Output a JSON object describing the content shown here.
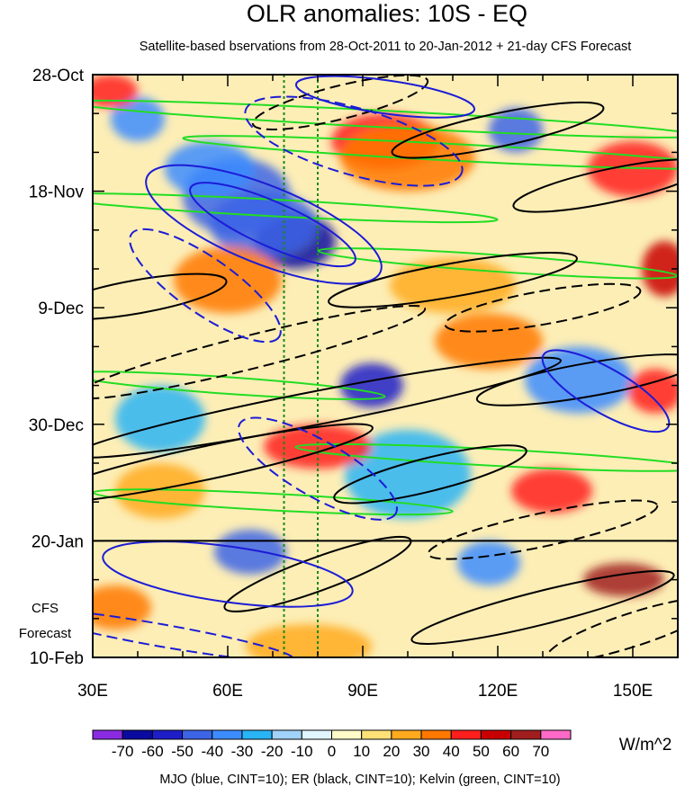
{
  "chart_data": {
    "type": "heatmap",
    "title": "OLR anomalies: 10S - EQ",
    "subtitle": "Satellite-based bservations from 28-Oct-2011 to 20-Jan-2012 + 21-day CFS Forecast",
    "x_axis": {
      "range": [
        30,
        160
      ],
      "ticks": [
        30,
        60,
        90,
        120,
        150
      ],
      "tick_labels": [
        "30E",
        "60E",
        "90E",
        "120E",
        "150E"
      ],
      "minor_every": 10
    },
    "y_axis": {
      "tick_labels": [
        "28-Oct",
        "18-Nov",
        "9-Dec",
        "30-Dec",
        "20-Jan",
        "10-Feb"
      ],
      "tick_day_offsets": [
        0,
        21,
        42,
        63,
        84,
        105
      ],
      "total_days": 105,
      "minor_every_days": 7,
      "direction": "time increases downward"
    },
    "observation_end_day": 84,
    "forecast_label": "CFS Forecast",
    "forecast_label_lines": [
      "CFS",
      "Forecast"
    ],
    "reference_longitudes": [
      72.5,
      80
    ],
    "colorbar": {
      "levels": [
        -70,
        -60,
        -50,
        -40,
        -30,
        -20,
        -10,
        0,
        10,
        20,
        30,
        40,
        50,
        60,
        70
      ],
      "labels": [
        "-70",
        "-60",
        "-50",
        "-40",
        "-30",
        "-20",
        "-10",
        "0",
        "10",
        "20",
        "30",
        "40",
        "50",
        "60",
        "70"
      ],
      "colors": [
        "#8a2be2",
        "#0a0aa0",
        "#1e1ec8",
        "#3c64e6",
        "#3c8cff",
        "#28b4f5",
        "#a0d2fa",
        "#e1f5ff",
        "#fffac8",
        "#ffe178",
        "#ffaa1e",
        "#ff7800",
        "#ff1e1e",
        "#c80000",
        "#a01e1e",
        "#ff69c8"
      ],
      "units": "W/m^2"
    },
    "overlays": [
      {
        "name": "MJO",
        "color": "#1c1cd6",
        "cint": 10
      },
      {
        "name": "ER",
        "color": "#000000",
        "cint": 10
      },
      {
        "name": "Kelvin",
        "color": "#22dd22",
        "cint": 10
      }
    ],
    "legend_text": "MJO (blue, CINT=10); ER (black, CINT=10); Kelvin (green, CINT=10)",
    "anomaly_features": [
      {
        "lon": 75,
        "day": 30,
        "value": -70,
        "rx": 9,
        "ry": 5
      },
      {
        "lon": 62,
        "day": 22,
        "value": -50,
        "rx": 12,
        "ry": 7
      },
      {
        "lon": 56,
        "day": 17,
        "value": -40,
        "rx": 10,
        "ry": 5
      },
      {
        "lon": 68,
        "day": 27,
        "value": -50,
        "rx": 12,
        "ry": 6
      },
      {
        "lon": 92,
        "day": 56,
        "value": -60,
        "rx": 7,
        "ry": 4
      },
      {
        "lon": 124,
        "day": 10,
        "value": -50,
        "rx": 6,
        "ry": 4
      },
      {
        "lon": 40,
        "day": 8,
        "value": -40,
        "rx": 6,
        "ry": 4
      },
      {
        "lon": 138,
        "day": 55,
        "value": -40,
        "rx": 12,
        "ry": 6
      },
      {
        "lon": 65,
        "day": 86,
        "value": -50,
        "rx": 8,
        "ry": 4
      },
      {
        "lon": 118,
        "day": 88,
        "value": -40,
        "rx": 7,
        "ry": 4
      },
      {
        "lon": 100,
        "day": 72,
        "value": -30,
        "rx": 14,
        "ry": 8
      },
      {
        "lon": 45,
        "day": 62,
        "value": -30,
        "rx": 10,
        "ry": 6
      },
      {
        "lon": 95,
        "day": 12,
        "value": 40,
        "rx": 12,
        "ry": 5
      },
      {
        "lon": 100,
        "day": 15,
        "value": 30,
        "rx": 15,
        "ry": 6
      },
      {
        "lon": 150,
        "day": 17,
        "value": 40,
        "rx": 10,
        "ry": 5
      },
      {
        "lon": 60,
        "day": 37,
        "value": 30,
        "rx": 12,
        "ry": 6
      },
      {
        "lon": 157,
        "day": 35,
        "value": 50,
        "rx": 5,
        "ry": 5
      },
      {
        "lon": 80,
        "day": 67,
        "value": 40,
        "rx": 12,
        "ry": 4
      },
      {
        "lon": 132,
        "day": 75,
        "value": 40,
        "rx": 9,
        "ry": 4
      },
      {
        "lon": 148,
        "day": 91,
        "value": 60,
        "rx": 9,
        "ry": 3
      },
      {
        "lon": 35,
        "day": 96,
        "value": 30,
        "rx": 8,
        "ry": 4
      },
      {
        "lon": 78,
        "day": 103,
        "value": 20,
        "rx": 14,
        "ry": 4
      },
      {
        "lon": 34,
        "day": 3,
        "value": 40,
        "rx": 6,
        "ry": 3
      },
      {
        "lon": 118,
        "day": 48,
        "value": 30,
        "rx": 12,
        "ry": 5
      },
      {
        "lon": 155,
        "day": 57,
        "value": 40,
        "rx": 6,
        "ry": 4
      },
      {
        "lon": 110,
        "day": 38,
        "value": 20,
        "rx": 14,
        "ry": 5
      },
      {
        "lon": 45,
        "day": 75,
        "value": 20,
        "rx": 10,
        "ry": 5
      }
    ],
    "mjo_contours": [
      {
        "lon": 68,
        "day": 27,
        "rx": 28,
        "ry": 7,
        "angle": 22,
        "dashed": false
      },
      {
        "lon": 70,
        "day": 27,
        "rx": 20,
        "ry": 4,
        "angle": 24,
        "dashed": false
      },
      {
        "lon": 88,
        "day": 12,
        "rx": 25,
        "ry": 6,
        "angle": 16,
        "dashed": true
      },
      {
        "lon": 55,
        "day": 38,
        "rx": 20,
        "ry": 5,
        "angle": 35,
        "dashed": true
      },
      {
        "lon": 80,
        "day": 71,
        "rx": 20,
        "ry": 5,
        "angle": 30,
        "dashed": true
      },
      {
        "lon": 144,
        "day": 57,
        "rx": 16,
        "ry": 4,
        "angle": 30,
        "dashed": false
      },
      {
        "lon": 60,
        "day": 90,
        "rx": 28,
        "ry": 5,
        "angle": 8,
        "dashed": false
      },
      {
        "lon": 45,
        "day": 101,
        "rx": 30,
        "ry": 2,
        "angle": 10,
        "dashed": true
      },
      {
        "lon": 95,
        "day": 4,
        "rx": 20,
        "ry": 3,
        "angle": 8,
        "dashed": false
      }
    ],
    "er_contours": [
      {
        "lon": 85,
        "day": 5,
        "rx": 20,
        "ry": 3,
        "angle": -14,
        "dashed": true
      },
      {
        "lon": 120,
        "day": 10,
        "rx": 24,
        "ry": 3,
        "angle": -12,
        "dashed": false
      },
      {
        "lon": 145,
        "day": 20,
        "rx": 22,
        "ry": 3,
        "angle": -12,
        "dashed": false
      },
      {
        "lon": 65,
        "day": 50,
        "rx": 40,
        "ry": 3,
        "angle": -14,
        "dashed": true
      },
      {
        "lon": 80,
        "day": 60,
        "rx": 55,
        "ry": 3,
        "angle": -11,
        "dashed": false
      },
      {
        "lon": 55,
        "day": 70,
        "rx": 38,
        "ry": 3,
        "angle": -12,
        "dashed": false
      },
      {
        "lon": 110,
        "day": 37,
        "rx": 28,
        "ry": 3,
        "angle": -10,
        "dashed": false
      },
      {
        "lon": 140,
        "day": 55,
        "rx": 25,
        "ry": 3,
        "angle": -10,
        "dashed": false
      },
      {
        "lon": 105,
        "day": 72,
        "rx": 22,
        "ry": 3,
        "angle": -14,
        "dashed": false
      },
      {
        "lon": 130,
        "day": 82,
        "rx": 26,
        "ry": 3,
        "angle": -12,
        "dashed": true
      },
      {
        "lon": 80,
        "day": 90,
        "rx": 22,
        "ry": 3,
        "angle": -20,
        "dashed": false
      },
      {
        "lon": 130,
        "day": 96,
        "rx": 30,
        "ry": 3,
        "angle": -14,
        "dashed": false
      },
      {
        "lon": 150,
        "day": 100,
        "rx": 20,
        "ry": 3,
        "angle": -18,
        "dashed": true
      },
      {
        "lon": 40,
        "day": 40,
        "rx": 20,
        "ry": 3,
        "angle": -10,
        "dashed": false
      },
      {
        "lon": 130,
        "day": 42,
        "rx": 22,
        "ry": 3,
        "angle": -10,
        "dashed": true
      }
    ],
    "kelvin_contours": [
      {
        "lon": 95,
        "day": 8,
        "rx": 70,
        "ry": 1.5,
        "angle": 3,
        "dashed": false
      },
      {
        "lon": 110,
        "day": 14,
        "rx": 60,
        "ry": 1.5,
        "angle": 3,
        "dashed": false
      },
      {
        "lon": 70,
        "day": 24,
        "rx": 50,
        "ry": 1.5,
        "angle": 3,
        "dashed": false
      },
      {
        "lon": 120,
        "day": 34,
        "rx": 40,
        "ry": 1.5,
        "angle": 4,
        "dashed": false
      },
      {
        "lon": 60,
        "day": 56,
        "rx": 35,
        "ry": 1.5,
        "angle": 4,
        "dashed": false
      },
      {
        "lon": 120,
        "day": 69,
        "rx": 45,
        "ry": 1.5,
        "angle": 3,
        "dashed": false
      },
      {
        "lon": 70,
        "day": 77,
        "rx": 40,
        "ry": 1.5,
        "angle": 3,
        "dashed": false
      }
    ]
  }
}
